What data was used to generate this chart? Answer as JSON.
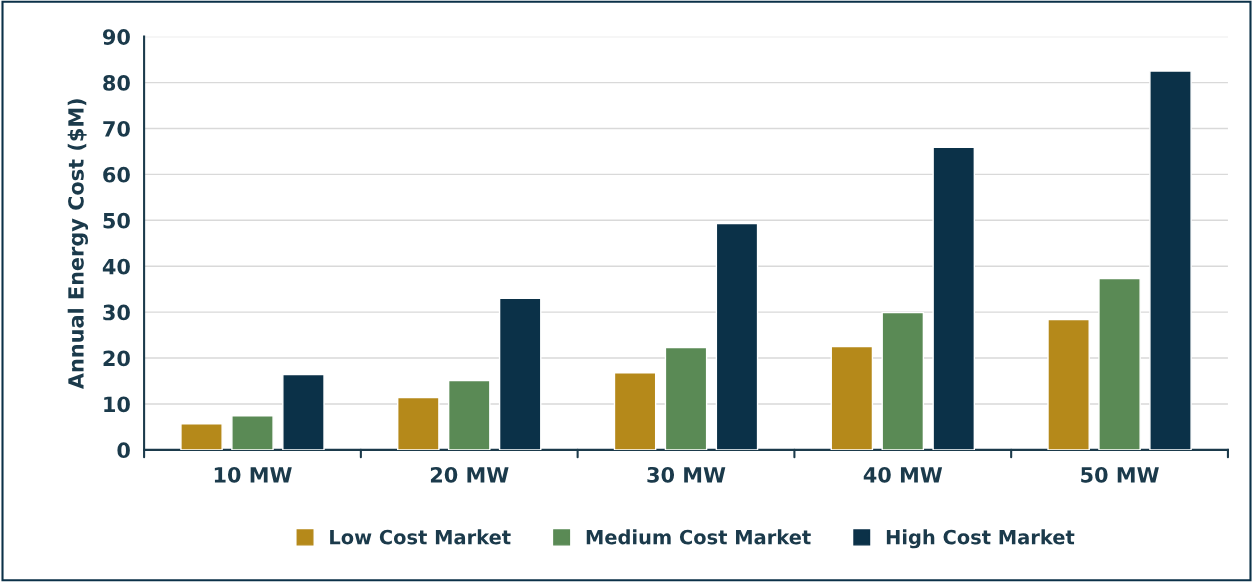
{
  "chart_data": {
    "type": "bar",
    "ylabel": "Annual Energy Cost ($M)",
    "categories": [
      "10 MW",
      "20 MW",
      "30 MW",
      "40 MW",
      "50 MW"
    ],
    "series": [
      {
        "name": "Low Cost Market",
        "color": "#b5891a",
        "values": [
          5.7,
          11.4,
          16.8,
          22.5,
          28.4
        ]
      },
      {
        "name": "Medium Cost Market",
        "color": "#5a8a55",
        "values": [
          7.4,
          15.1,
          22.3,
          29.9,
          37.3
        ]
      },
      {
        "name": "High Cost Market",
        "color": "#0b3148",
        "values": [
          16.4,
          33.0,
          49.3,
          65.9,
          82.5
        ]
      }
    ],
    "ylim": [
      0,
      90
    ],
    "yticks": [
      0,
      10,
      20,
      30,
      40,
      50,
      60,
      70,
      80,
      90
    ],
    "grid": "y",
    "legend": "bottom"
  }
}
